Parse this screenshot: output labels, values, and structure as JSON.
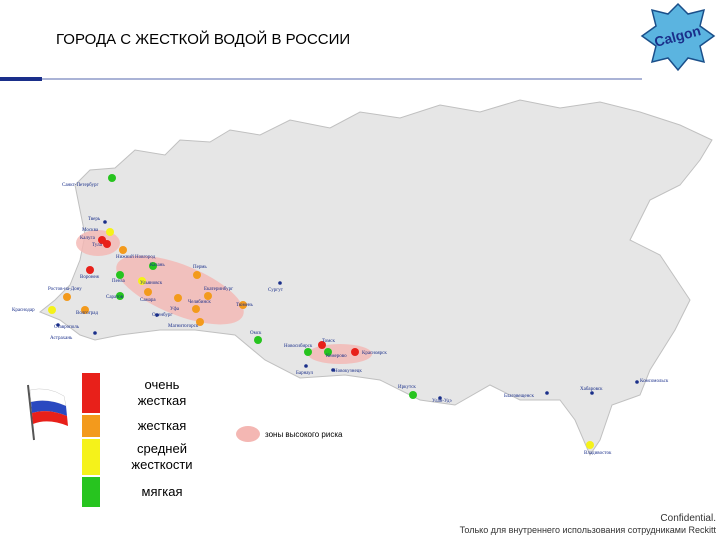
{
  "header": {
    "title": "ГОРОДА С ЖЕСТКОЙ ВОДОЙ В РОССИИ",
    "logo": "Calgon"
  },
  "legend": {
    "items": [
      {
        "label": "очень жесткая",
        "color": "#e8201a"
      },
      {
        "label": "жесткая",
        "color": "#f39a1c"
      },
      {
        "label": "средней жесткости",
        "color": "#f5f21a"
      },
      {
        "label": "мягкая",
        "color": "#27c41f"
      }
    ],
    "risk_zone": {
      "label": "зоны высокого риска",
      "color": "#f4b7b3"
    }
  },
  "cities": [
    {
      "name": "Санкт-Петербург",
      "color": "#27c41f"
    },
    {
      "name": "Тверь",
      "color": "#1a2f8a"
    },
    {
      "name": "Москва",
      "color": "#f5f21a"
    },
    {
      "name": "Калуга",
      "color": "#e8201a"
    },
    {
      "name": "Тула",
      "color": "#e8201a"
    },
    {
      "name": "Нижний Новгород",
      "color": "#f39a1c"
    },
    {
      "name": "Воронеж",
      "color": "#e8201a"
    },
    {
      "name": "Казань",
      "color": "#27c41f"
    },
    {
      "name": "Пенза",
      "color": "#27c41f"
    },
    {
      "name": "Ульяновск",
      "color": "#f5f21a"
    },
    {
      "name": "Саратов",
      "color": "#27c41f"
    },
    {
      "name": "Самара",
      "color": "#f39a1c"
    },
    {
      "name": "Пермь",
      "color": "#f39a1c"
    },
    {
      "name": "Екатеринбург",
      "color": "#f39a1c"
    },
    {
      "name": "Тюмень",
      "color": "#f39a1c"
    },
    {
      "name": "Челябинск",
      "color": "#f39a1c"
    },
    {
      "name": "Уфа",
      "color": "#f39a1c"
    },
    {
      "name": "Оренбург",
      "color": "#1a2f8a"
    },
    {
      "name": "Магнитогорск",
      "color": "#f39a1c"
    },
    {
      "name": "Ростов-на-Дону",
      "color": "#f39a1c"
    },
    {
      "name": "Краснодар",
      "color": "#f5f21a"
    },
    {
      "name": "Волгоград",
      "color": "#f39a1c"
    },
    {
      "name": "Ставрополь",
      "color": "#1a2f8a"
    },
    {
      "name": "Астрахань",
      "color": "#1a2f8a"
    },
    {
      "name": "Сургут",
      "color": "#1a2f8a"
    },
    {
      "name": "Омск",
      "color": "#27c41f"
    },
    {
      "name": "Новосибирск",
      "color": "#27c41f"
    },
    {
      "name": "Томск",
      "color": "#e8201a"
    },
    {
      "name": "Кемерово",
      "color": "#27c41f"
    },
    {
      "name": "Барнаул",
      "color": "#1a2f8a"
    },
    {
      "name": "Новокузнецк",
      "color": "#1a2f8a"
    },
    {
      "name": "Красноярск",
      "color": "#e8201a"
    },
    {
      "name": "Иркутск",
      "color": "#27c41f"
    },
    {
      "name": "Улан-Удэ",
      "color": "#1a2f8a"
    },
    {
      "name": "Благовещенск",
      "color": "#1a2f8a"
    },
    {
      "name": "Хабаровск",
      "color": "#1a2f8a"
    },
    {
      "name": "Комсомольск",
      "color": "#1a2f8a"
    },
    {
      "name": "Владивосток",
      "color": "#f5f21a"
    }
  ],
  "footer": {
    "confidential": "Confidential.",
    "note": "Только для внутреннего использования сотрудниками Reckitt"
  }
}
